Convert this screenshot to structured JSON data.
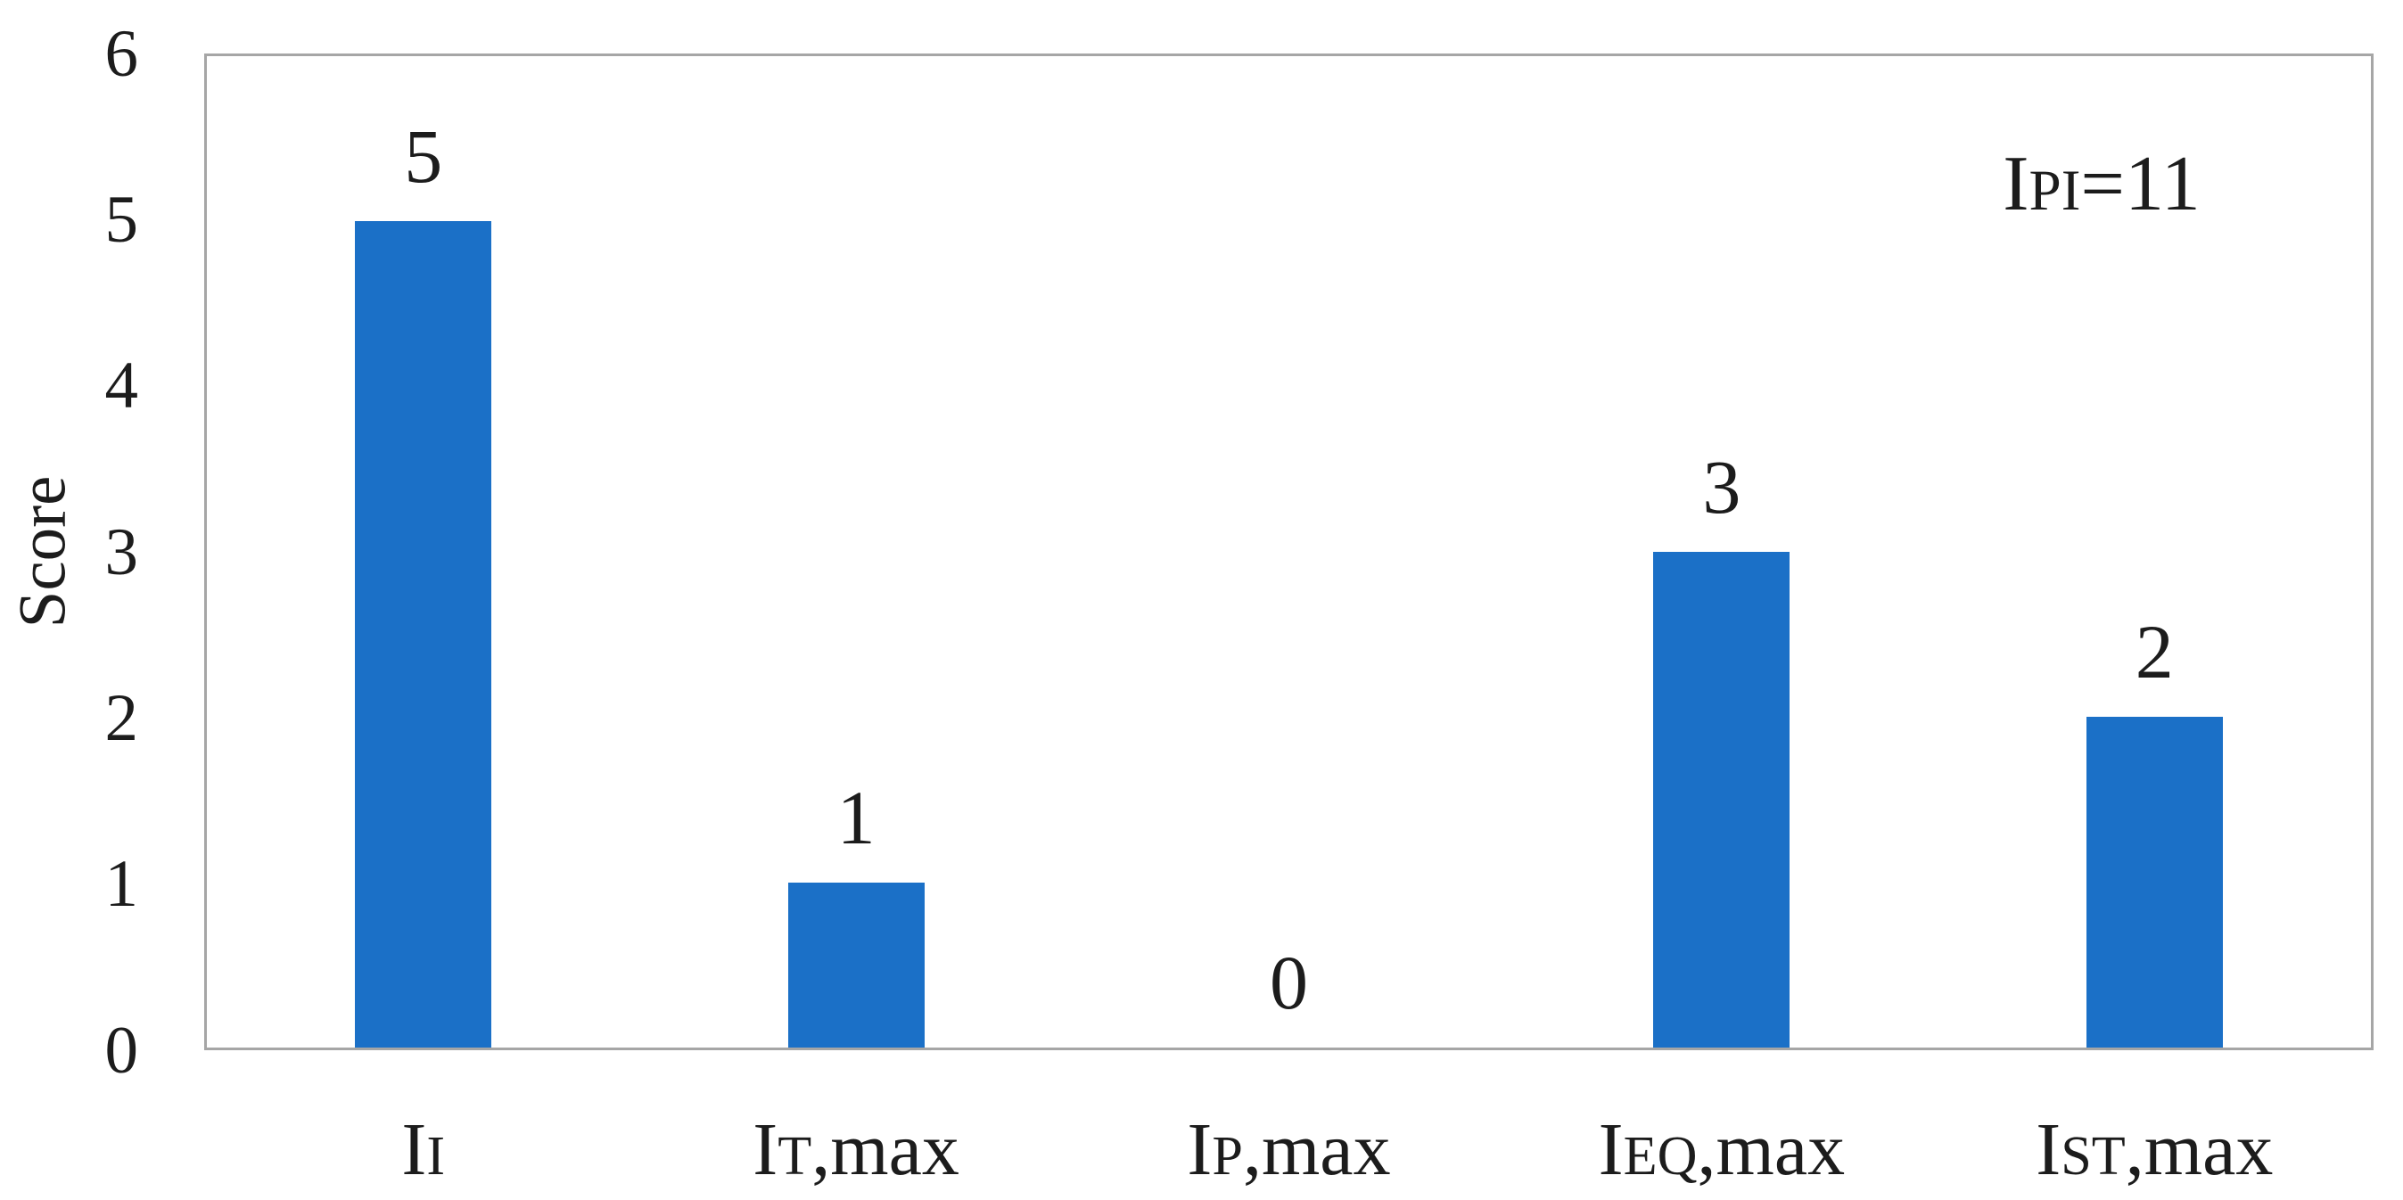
{
  "chart_data": {
    "type": "bar",
    "title": "",
    "xlabel": "",
    "ylabel": "Score",
    "ylim": [
      0,
      6
    ],
    "y_ticks": [
      "0",
      "1",
      "2",
      "3",
      "4",
      "5",
      "6"
    ],
    "grid": false,
    "legend": false,
    "categories": [
      "II",
      "IT,max",
      "IP,max",
      "IEQ,max",
      "IST,max"
    ],
    "categories_rich": [
      {
        "base": "I",
        "sub": "I",
        "suffix": ""
      },
      {
        "base": "I",
        "sub": "T",
        "suffix": ",max"
      },
      {
        "base": "I",
        "sub": "P",
        "suffix": ",max"
      },
      {
        "base": "I",
        "sub": "EQ",
        "suffix": ",max"
      },
      {
        "base": "I",
        "sub": "ST",
        "suffix": ",max"
      }
    ],
    "values": [
      5,
      1,
      0,
      3,
      2
    ],
    "data_labels": [
      "5",
      "1",
      "0",
      "3",
      "2"
    ],
    "annotation": {
      "text_plain": "IPI=11",
      "base": "I",
      "sub": "PI",
      "suffix": "=11"
    },
    "colors": {
      "bar": "#1B70C7",
      "axis_border": "#A6A6A6",
      "text": "#1C1C1C",
      "background": "#FFFFFF"
    }
  }
}
